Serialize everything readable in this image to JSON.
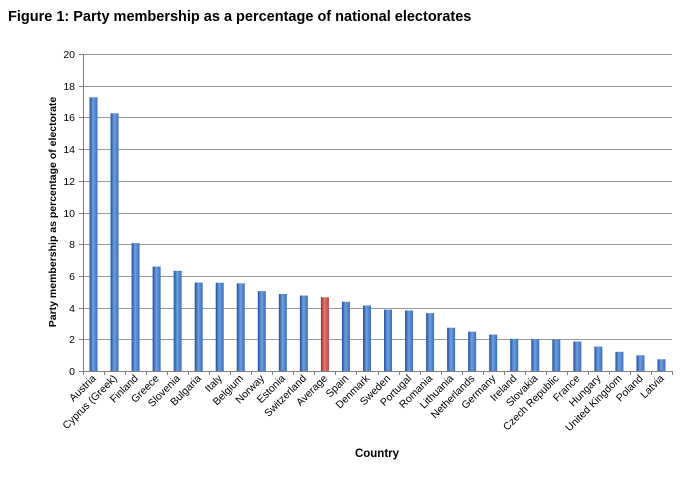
{
  "figure_title": "Figure 1: Party membership as a percentage of national electorates",
  "chart_data": {
    "type": "bar",
    "xlabel": "Country",
    "ylabel": "Party membership as percentage of electorate",
    "ylim": [
      0,
      20
    ],
    "yticks": [
      0,
      2,
      4,
      6,
      8,
      10,
      12,
      14,
      16,
      18,
      20
    ],
    "grid": true,
    "legend": "none",
    "categories": [
      "Austria",
      "Cyprus (Greek)",
      "Finland",
      "Greece",
      "Slovenia",
      "Bulgaria",
      "Italy",
      "Belgium",
      "Norway",
      "Estonia",
      "Switzerland",
      "Average",
      "Spain",
      "Denmark",
      "Sweden",
      "Portugal",
      "Romania",
      "Lithuania",
      "Netherlands",
      "Germany",
      "Ireland",
      "Slovakia",
      "Czech Republic",
      "France",
      "Hungary",
      "United Kingdom",
      "Poland",
      "Latvia"
    ],
    "values": [
      17.27,
      16.26,
      8.07,
      6.59,
      6.32,
      5.58,
      5.57,
      5.53,
      5.04,
      4.86,
      4.76,
      4.65,
      4.37,
      4.13,
      3.87,
      3.82,
      3.65,
      2.73,
      2.48,
      2.3,
      2.03,
      2.02,
      1.99,
      1.86,
      1.54,
      1.21,
      0.99,
      0.74
    ],
    "highlight_category": "Average",
    "colors": {
      "bar": "#3a6fbf",
      "bar_dark": "#1f4f99",
      "bar_light": "#6f9ee0",
      "highlight": "#c84038",
      "highlight_dark": "#9a2a24",
      "highlight_light": "#e07a72",
      "grid": "#9a9a9a",
      "axis": "#7f7f7f"
    }
  }
}
